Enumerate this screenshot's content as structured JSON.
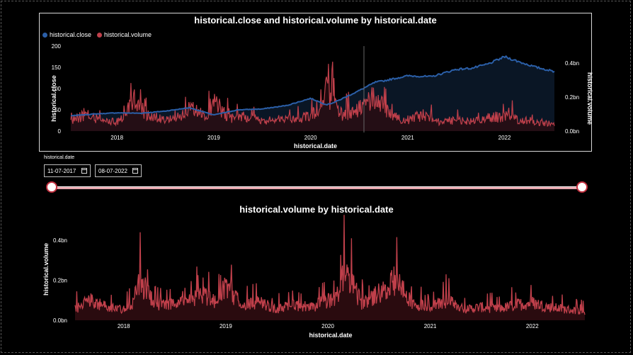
{
  "chart_data": [
    {
      "type": "line",
      "title": "historical.close and historical.volume by historical.date",
      "xlabel": "historical.date",
      "ylabel": "historical.close",
      "y2label": "historical.volume",
      "x_ticks": [
        "2018",
        "2019",
        "2020",
        "2021",
        "2022"
      ],
      "y_ticks": [
        "0",
        "50",
        "100",
        "150",
        "200"
      ],
      "y2_ticks": [
        "0.0bn",
        "0.2bn",
        "0.4bn"
      ],
      "ylim": [
        0,
        200
      ],
      "y2lim": [
        0,
        0.5
      ],
      "legend_placement": "top-left",
      "series": [
        {
          "name": "historical.close",
          "color": "#2b5fa8",
          "axis": "left",
          "x": [
            "2017-07-11",
            "2017-10",
            "2018-01",
            "2018-04",
            "2018-07",
            "2018-10",
            "2019-01",
            "2019-04",
            "2019-07",
            "2019-10",
            "2020-01",
            "2020-03",
            "2020-04",
            "2020-07",
            "2020-09",
            "2020-10",
            "2021-01",
            "2021-04",
            "2021-07",
            "2021-09",
            "2021-11",
            "2022-01",
            "2022-03",
            "2022-05",
            "2022-07-08"
          ],
          "values": [
            36,
            40,
            43,
            42,
            47,
            55,
            38,
            50,
            52,
            60,
            77,
            62,
            68,
            95,
            115,
            118,
            130,
            128,
            145,
            148,
            158,
            175,
            162,
            150,
            140
          ]
        },
        {
          "name": "historical.volume",
          "color": "#c0404b",
          "axis": "right",
          "x": [
            "2017-07",
            "2017-09",
            "2017-11",
            "2018-01",
            "2018-02",
            "2018-03",
            "2018-05",
            "2018-07",
            "2018-09",
            "2018-10",
            "2018-12",
            "2019-01",
            "2019-03",
            "2019-05",
            "2019-07",
            "2019-09",
            "2019-11",
            "2020-01",
            "2020-02",
            "2020-03",
            "2020-04",
            "2020-05",
            "2020-07",
            "2020-08",
            "2020-09",
            "2020-11",
            "2021-01",
            "2021-03",
            "2021-05",
            "2021-07",
            "2021-09",
            "2021-11",
            "2022-01",
            "2022-03",
            "2022-05",
            "2022-07"
          ],
          "values": [
            0.09,
            0.18,
            0.12,
            0.1,
            0.16,
            0.34,
            0.15,
            0.14,
            0.18,
            0.24,
            0.16,
            0.32,
            0.13,
            0.16,
            0.1,
            0.14,
            0.12,
            0.18,
            0.2,
            0.42,
            0.3,
            0.16,
            0.24,
            0.28,
            0.38,
            0.15,
            0.12,
            0.18,
            0.1,
            0.12,
            0.1,
            0.14,
            0.16,
            0.12,
            0.1,
            0.08
          ]
        }
      ]
    },
    {
      "type": "area",
      "title": "historical.volume by historical.date",
      "xlabel": "historical.date",
      "ylabel": "historical.volume",
      "x_ticks": [
        "2018",
        "2019",
        "2020",
        "2021",
        "2022"
      ],
      "y_ticks": [
        "0.0bn",
        "0.2bn",
        "0.4bn"
      ],
      "ylim": [
        0,
        0.45
      ],
      "series": [
        {
          "name": "historical.volume",
          "color": "#c0404b",
          "x": [
            "2017-07",
            "2017-09",
            "2017-11",
            "2018-01",
            "2018-02",
            "2018-03",
            "2018-05",
            "2018-07",
            "2018-09",
            "2018-10",
            "2018-12",
            "2019-01",
            "2019-03",
            "2019-05",
            "2019-07",
            "2019-09",
            "2019-11",
            "2020-01",
            "2020-02",
            "2020-03",
            "2020-04",
            "2020-05",
            "2020-07",
            "2020-08",
            "2020-09",
            "2020-11",
            "2021-01",
            "2021-03",
            "2021-05",
            "2021-07",
            "2021-09",
            "2021-11",
            "2022-01",
            "2022-03",
            "2022-05",
            "2022-07"
          ],
          "values": [
            0.09,
            0.18,
            0.12,
            0.1,
            0.16,
            0.34,
            0.15,
            0.14,
            0.18,
            0.24,
            0.16,
            0.32,
            0.13,
            0.16,
            0.1,
            0.14,
            0.12,
            0.18,
            0.2,
            0.42,
            0.3,
            0.16,
            0.24,
            0.28,
            0.38,
            0.15,
            0.12,
            0.18,
            0.1,
            0.12,
            0.1,
            0.14,
            0.16,
            0.12,
            0.1,
            0.08
          ]
        }
      ]
    }
  ],
  "slicer": {
    "label": "historical.date",
    "start": "11-07-2017",
    "end": "08-07-2022",
    "start_date": "2017-07-11",
    "end_date": "2022-07-08",
    "range_fraction": [
      0,
      1
    ]
  },
  "colors": {
    "close": "#2b5fa8",
    "volume": "#c0404b",
    "background": "#000000"
  }
}
